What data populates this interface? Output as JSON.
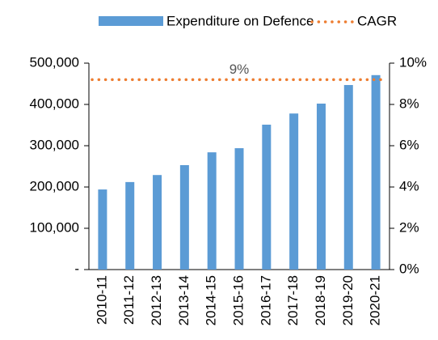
{
  "chart_data": {
    "type": "bar",
    "categories": [
      "2010-11",
      "2011-12",
      "2012-13",
      "2013-14",
      "2014-15",
      "2015-16",
      "2016-17",
      "2017-18",
      "2018-19",
      "2019-20",
      "2020-21"
    ],
    "series": [
      {
        "name": "Expenditure on Defence",
        "type": "bar",
        "color": "#5b9bd5",
        "values": [
          194000,
          212000,
          229000,
          253000,
          284000,
          294000,
          351000,
          378000,
          402000,
          447000,
          471000
        ]
      },
      {
        "name": "CAGR",
        "type": "line",
        "axis": "y2",
        "color": "#ed7d31",
        "values": [
          9.2,
          9.2,
          9.2,
          9.2,
          9.2,
          9.2,
          9.2,
          9.2,
          9.2,
          9.2,
          9.2
        ],
        "value_labels": [
          null,
          null,
          null,
          null,
          null,
          "9%",
          null,
          null,
          null,
          null,
          null
        ]
      }
    ],
    "ylim": [
      0,
      500000
    ],
    "yticks": [
      {
        "value": 0,
        "label": "-"
      },
      {
        "value": 100000,
        "label": "100,000"
      },
      {
        "value": 200000,
        "label": "200,000"
      },
      {
        "value": 300000,
        "label": "300,000"
      },
      {
        "value": 400000,
        "label": "400,000"
      },
      {
        "value": 500000,
        "label": "500,000"
      }
    ],
    "y2lim": [
      0,
      10
    ],
    "y2ticks": [
      {
        "value": 0,
        "label": "0%"
      },
      {
        "value": 2,
        "label": "2%"
      },
      {
        "value": 4,
        "label": "4%"
      },
      {
        "value": 6,
        "label": "6%"
      },
      {
        "value": 8,
        "label": "8%"
      },
      {
        "value": 10,
        "label": "10%"
      }
    ],
    "legend": "top",
    "grid": false
  }
}
